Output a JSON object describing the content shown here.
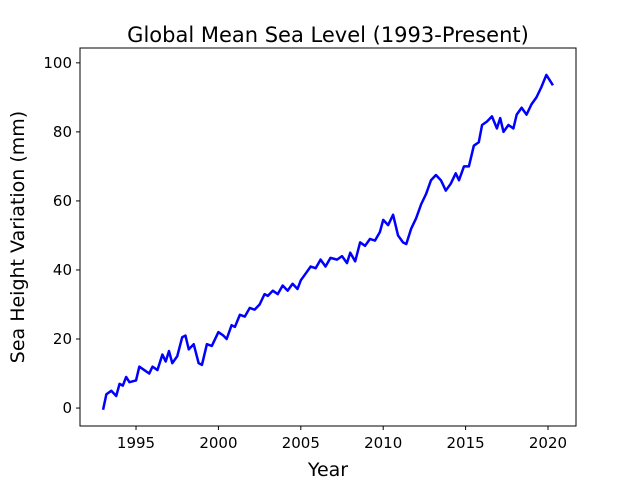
{
  "chart_data": {
    "type": "line",
    "title": "Global Mean Sea Level (1993-Present)",
    "x_label": "Year",
    "y_label": "Sea Height Variation (mm)",
    "xlim": [
      1991.6,
      2021.7
    ],
    "ylim": [
      -5.2,
      104.3
    ],
    "xticks": [
      1995,
      2000,
      2005,
      2010,
      2015,
      2020
    ],
    "yticks": [
      0,
      20,
      40,
      60,
      80,
      100
    ],
    "x": [
      1993.0,
      1993.2,
      1993.5,
      1993.8,
      1994.0,
      1994.2,
      1994.4,
      1994.6,
      1995.0,
      1995.2,
      1995.5,
      1995.8,
      1996.0,
      1996.3,
      1996.6,
      1996.8,
      1997.0,
      1997.2,
      1997.5,
      1997.8,
      1998.0,
      1998.2,
      1998.5,
      1998.8,
      1999.0,
      1999.3,
      1999.6,
      2000.0,
      2000.3,
      2000.5,
      2000.8,
      2001.0,
      2001.3,
      2001.6,
      2001.9,
      2002.2,
      2002.5,
      2002.8,
      2003.0,
      2003.3,
      2003.6,
      2003.9,
      2004.2,
      2004.5,
      2004.8,
      2005.0,
      2005.3,
      2005.6,
      2005.9,
      2006.2,
      2006.5,
      2006.8,
      2007.2,
      2007.5,
      2007.8,
      2008.0,
      2008.3,
      2008.6,
      2008.9,
      2009.2,
      2009.5,
      2009.8,
      2010.0,
      2010.3,
      2010.6,
      2010.9,
      2011.2,
      2011.4,
      2011.7,
      2012.0,
      2012.3,
      2012.6,
      2012.9,
      2013.2,
      2013.5,
      2013.8,
      2014.1,
      2014.4,
      2014.6,
      2014.9,
      2015.2,
      2015.5,
      2015.8,
      2016.0,
      2016.3,
      2016.6,
      2016.9,
      2017.1,
      2017.3,
      2017.6,
      2017.9,
      2018.1,
      2018.4,
      2018.7,
      2019.0,
      2019.3,
      2019.6,
      2019.9,
      2020.1,
      2020.3
    ],
    "series": [
      {
        "color": "#0000ff",
        "values": [
          -0.5,
          4,
          5,
          3.5,
          7,
          6.5,
          9,
          7.5,
          8,
          12,
          11,
          10,
          12,
          11,
          15.5,
          13.5,
          16.5,
          13,
          15,
          20.5,
          21,
          17,
          18.5,
          13,
          12.5,
          18.5,
          18,
          22,
          21,
          20,
          24,
          23.5,
          27,
          26.5,
          29,
          28.5,
          30,
          33,
          32.5,
          34,
          33,
          35.5,
          34,
          36,
          34.5,
          37,
          39,
          41,
          40.5,
          43,
          41,
          43.5,
          43,
          44,
          42,
          45,
          42.5,
          48,
          47,
          49,
          48.5,
          51,
          54.5,
          53,
          56,
          50,
          48,
          47.5,
          52,
          55,
          59,
          62,
          66,
          67.5,
          66,
          63,
          65,
          68,
          66,
          70,
          70,
          76,
          77,
          82,
          83,
          84.5,
          81,
          84,
          80,
          82,
          81,
          85,
          87,
          85,
          88,
          90,
          93,
          96.5,
          95,
          93.5
        ]
      }
    ]
  }
}
